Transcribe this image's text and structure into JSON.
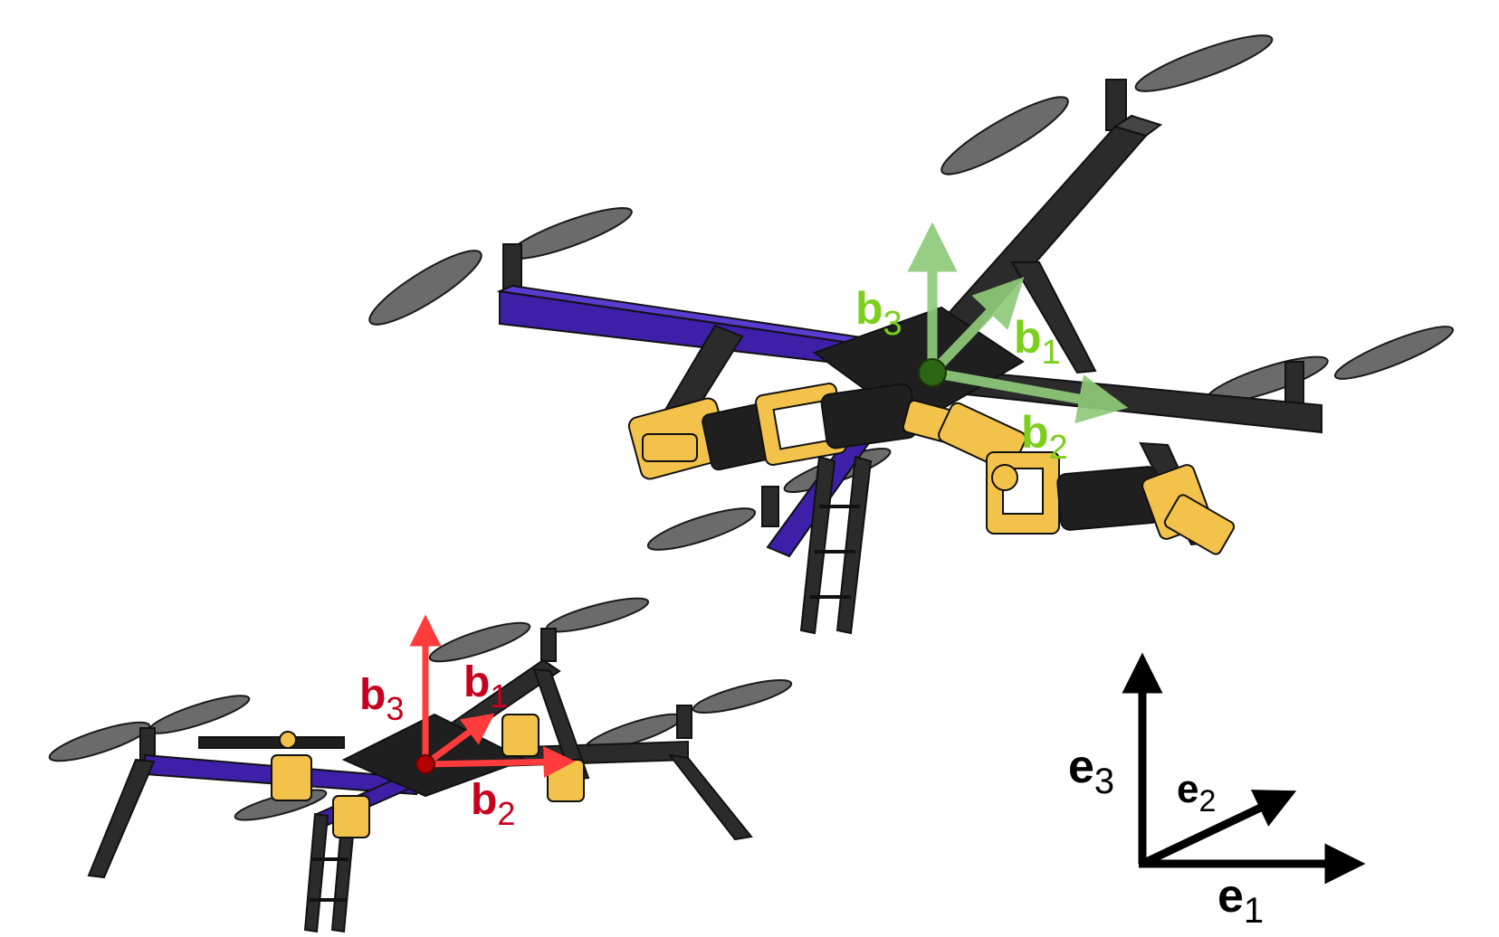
{
  "colors": {
    "background": "#ffffff",
    "frame_black": "#2b2b2b",
    "frame_dark": "#1a1a1a",
    "arm_purple": "#3d1fa8",
    "arm_purple_dark": "#2a1378",
    "servo_gold": "#f2c24a",
    "propeller_gray": "#6b6b6b",
    "body_frame_green": "#7ccf1c",
    "body_frame_green_arrow": "#8fca7a",
    "body_frame_green_origin": "#2e6b12",
    "body_frame_red": "#c8001e",
    "body_frame_red_arrow": "#ff3b3b",
    "body_frame_red_origin": "#b30000",
    "inertial_frame": "#000000"
  },
  "frames": {
    "green": {
      "axes": [
        {
          "base": "b",
          "sub": "3"
        },
        {
          "base": "b",
          "sub": "1"
        },
        {
          "base": "b",
          "sub": "2"
        }
      ]
    },
    "red": {
      "axes": [
        {
          "base": "b",
          "sub": "3"
        },
        {
          "base": "b",
          "sub": "1"
        },
        {
          "base": "b",
          "sub": "2"
        }
      ]
    },
    "inertial": {
      "axes": [
        {
          "base": "e",
          "sub": "3"
        },
        {
          "base": "e",
          "sub": "2"
        },
        {
          "base": "e",
          "sub": "1"
        }
      ]
    }
  }
}
